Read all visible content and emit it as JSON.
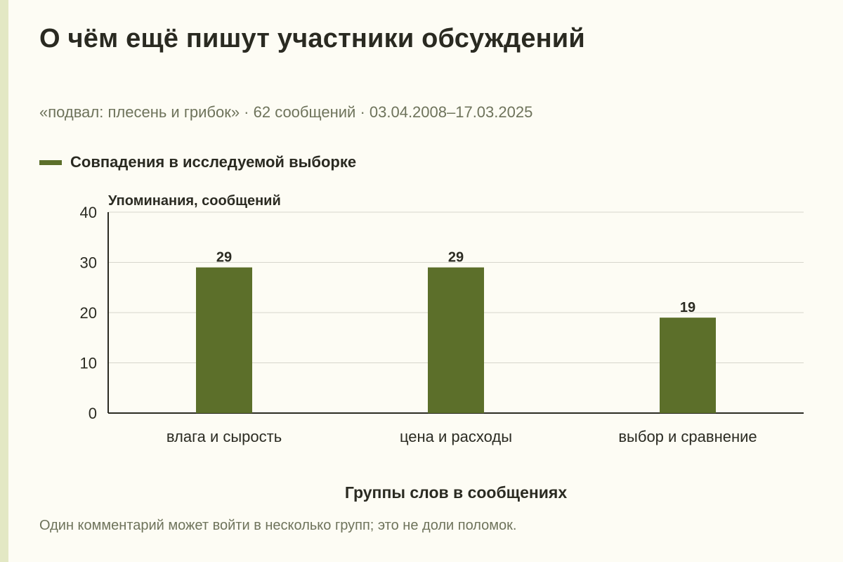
{
  "title": "О чём ещё пишут участники обсуждений",
  "subtitle": "«подвал: плесень и грибок» · 62 сообщений · 03.04.2008–17.03.2025",
  "footnote": "Один комментарий может войти в несколько групп; это не доли поломок.",
  "colors": {
    "bar": "#5c6f2a",
    "grid": "#d6d6cc",
    "axis": "#2b2b22",
    "stripe": "#e3e8c4"
  },
  "chart_data": {
    "type": "bar",
    "categories": [
      "влага и сырость",
      "цена и расходы",
      "выбор и сравнение"
    ],
    "series": [
      {
        "name": "Совпадения в исследуемой выборке",
        "values": [
          29,
          29,
          19
        ]
      }
    ],
    "ylabel": "Упоминания, сообщений",
    "xlabel": "Группы слов в сообщениях",
    "ylim": [
      0,
      40
    ],
    "yticks": [
      0,
      10,
      20,
      30,
      40
    ],
    "grid": true,
    "legend": "top-left"
  }
}
